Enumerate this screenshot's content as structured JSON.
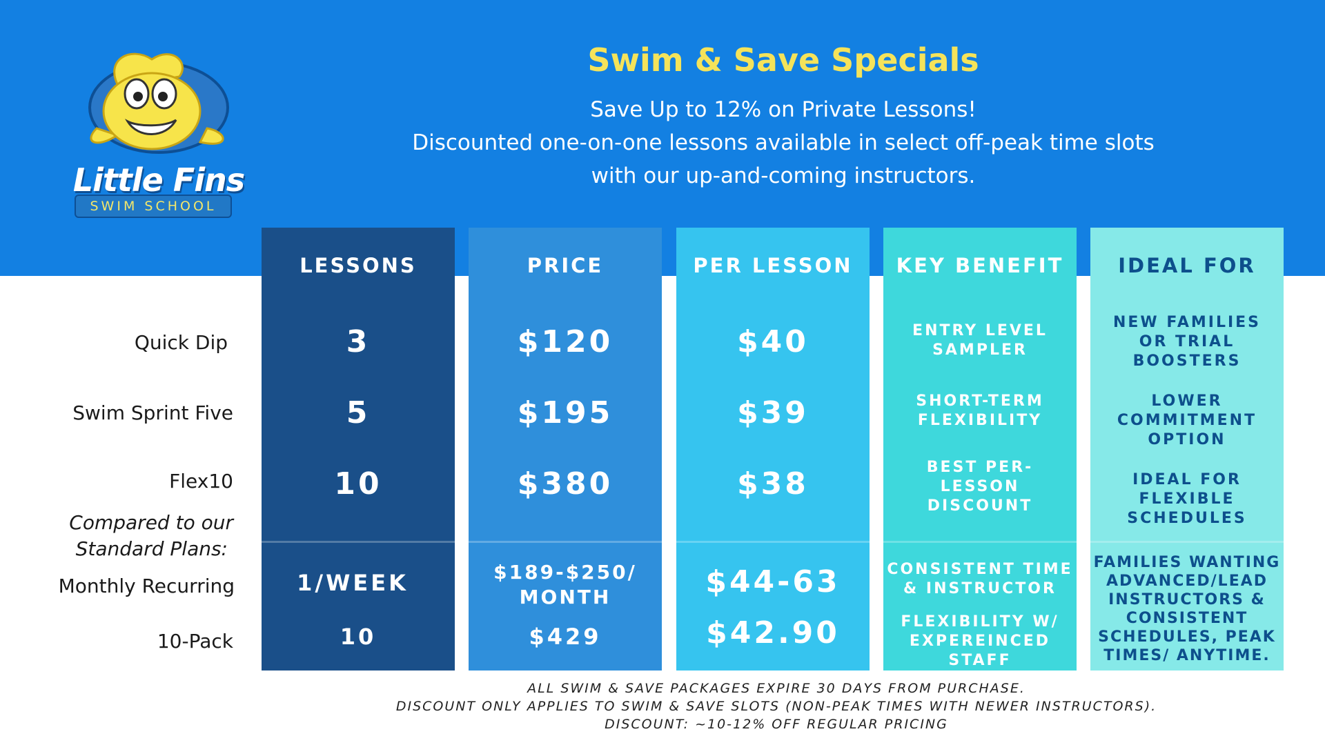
{
  "brand": {
    "name": "Little Fins",
    "tagline": "SWIM SCHOOL"
  },
  "header": {
    "title": "Swim & Save Specials",
    "subtitle_lines": [
      "Save Up to 12% on Private Lessons!",
      "Discounted one-on-one lessons available in select off-peak time slots",
      "with our up-and-coming instructors."
    ]
  },
  "table": {
    "columns": [
      "LESSONS",
      "PRICE",
      "PER LESSON",
      "KEY BENEFIT",
      "IDEAL FOR"
    ],
    "row_labels": [
      "Quick Dip",
      "Swim Sprint Five",
      "Flex10"
    ],
    "comparison_label": [
      "Compared to our",
      "Standard Plans:"
    ],
    "standard_labels": [
      "Monthly Recurring",
      "10-Pack"
    ],
    "rows": [
      {
        "lessons": "3",
        "price": "$120",
        "per_lesson": "$40",
        "benefit": [
          "ENTRY LEVEL",
          "SAMPLER"
        ],
        "ideal_for": [
          "NEW FAMILIES",
          "OR TRIAL",
          "BOOSTERS"
        ]
      },
      {
        "lessons": "5",
        "price": "$195",
        "per_lesson": "$39",
        "benefit": [
          "SHORT-TERM",
          "FLEXIBILITY"
        ],
        "ideal_for": [
          "LOWER",
          "COMMITMENT",
          "OPTION"
        ]
      },
      {
        "lessons": "10",
        "price": "$380",
        "per_lesson": "$38",
        "benefit": [
          "BEST PER-",
          "LESSON",
          "DISCOUNT"
        ],
        "ideal_for": [
          "IDEAL FOR",
          "FLEXIBLE",
          "SCHEDULES"
        ]
      }
    ],
    "standard": {
      "monthly": {
        "lessons": "1/WEEK",
        "price": [
          "$189-$250/",
          "MONTH"
        ],
        "per_lesson": "$44-63",
        "benefit": [
          "CONSISTENT TIME",
          "& INSTRUCTOR"
        ]
      },
      "pack": {
        "lessons": "10",
        "price": "$429",
        "per_lesson": "$42.90",
        "benefit": [
          "FLEXIBILITY W/",
          "EXPEREINCED",
          "STAFF"
        ]
      },
      "ideal_for": [
        "FAMILIES WANTING",
        "ADVANCED/LEAD",
        "INSTRUCTORS &",
        "CONSISTENT",
        "SCHEDULES, PEAK",
        "TIMES/ ANYTIME."
      ]
    }
  },
  "footer": {
    "lines": [
      "ALL SWIM & SAVE PACKAGES EXPIRE 30 DAYS FROM PURCHASE.",
      "DISCOUNT ONLY APPLIES TO SWIM & SAVE SLOTS (NON-PEAK TIMES WITH NEWER INSTRUCTORS).",
      "DISCOUNT: ~10-12% OFF REGULAR PRICING"
    ]
  },
  "colors": {
    "banner": "#1380e2",
    "title": "#f5e35a",
    "col_lessons": "#1a4f89",
    "col_price": "#2f8fdb",
    "col_per_lesson": "#36c4ef",
    "col_benefit": "#3ed8dc",
    "col_ideal": "#86e9e8",
    "ideal_text": "#0d4f8c"
  }
}
